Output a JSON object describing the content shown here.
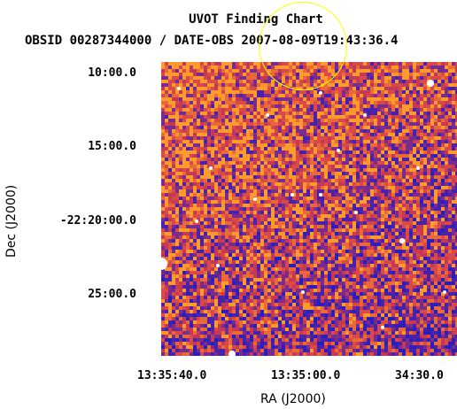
{
  "header": {
    "title": "UVOT Finding Chart",
    "subtitle": "OBSID 00287344000 / DATE-OBS 2007-08-09T19:43:36.4"
  },
  "axes": {
    "y_title": "Dec (J2000)",
    "x_title": "RA (J2000)",
    "y_ticks": [
      "10:00.0",
      "15:00.0",
      "-22:20:00.0",
      "25:00.0"
    ],
    "x_ticks": [
      "13:35:40.0",
      "13:35:00.0",
      "34:30.0"
    ]
  },
  "colors": {
    "target_circle": "#ffff00",
    "image_low": "#2a1fb8",
    "image_mid": "#c43a55",
    "image_high": "#ff9a2e",
    "star": "#ffffff"
  }
}
